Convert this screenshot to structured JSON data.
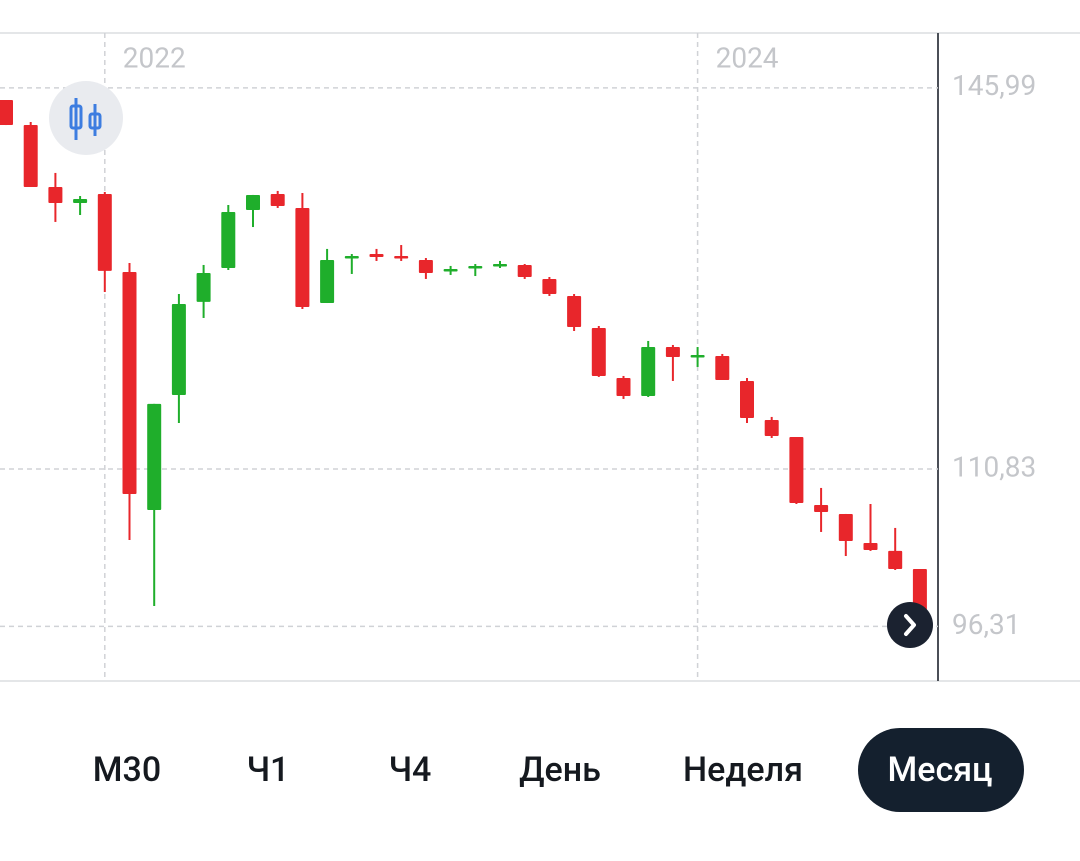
{
  "chart_data": {
    "type": "candlestick",
    "categories": [
      null,
      null,
      null,
      null,
      "2022",
      null,
      null,
      null,
      null,
      null,
      null,
      null,
      null,
      null,
      null,
      null,
      null,
      null,
      null,
      null,
      null,
      null,
      null,
      null,
      null,
      null,
      null,
      null,
      "2024",
      null,
      null,
      null,
      null,
      null,
      null,
      null,
      null,
      null
    ],
    "open": [
      144.87,
      142.56,
      136.84,
      135.37,
      136.2,
      129.0,
      107.05,
      117.66,
      126.24,
      129.37,
      134.72,
      136.2,
      134.91,
      126.14,
      130.29,
      130.66,
      130.48,
      130.11,
      129.1,
      129.37,
      129.65,
      129.65,
      128.36,
      126.79,
      123.84,
      119.22,
      117.56,
      122.08,
      121.16,
      121.25,
      118.95,
      115.35,
      113.78,
      107.51,
      106.68,
      104.0,
      103.27,
      101.6
    ],
    "high": [
      144.87,
      142.84,
      138.14,
      136.01,
      136.38,
      129.83,
      116.83,
      126.97,
      129.65,
      135.18,
      136.11,
      136.48,
      136.29,
      131.13,
      130.66,
      131.13,
      131.49,
      130.29,
      129.56,
      129.74,
      130.02,
      129.74,
      128.54,
      126.97,
      124.02,
      119.41,
      122.64,
      122.27,
      122.08,
      121.44,
      119.22,
      115.63,
      113.78,
      109.08,
      106.68,
      107.6,
      105.39,
      101.6
    ],
    "low": [
      142.56,
      136.84,
      133.62,
      134.26,
      127.16,
      104.28,
      98.19,
      115.07,
      124.76,
      129.19,
      133.15,
      134.91,
      125.59,
      126.14,
      128.82,
      130.02,
      130.02,
      128.36,
      128.73,
      128.63,
      129.37,
      128.36,
      126.79,
      123.56,
      119.32,
      117.29,
      117.47,
      118.95,
      120.24,
      119.04,
      115.07,
      113.69,
      107.6,
      105.02,
      102.8,
      103.27,
      101.51,
      97.36
    ],
    "close": [
      142.56,
      136.84,
      135.37,
      135.74,
      129.1,
      108.52,
      116.83,
      126.05,
      128.91,
      134.54,
      136.11,
      135.09,
      125.77,
      130.11,
      130.48,
      130.39,
      130.29,
      128.91,
      129.28,
      129.56,
      129.74,
      128.54,
      126.97,
      123.93,
      119.41,
      117.56,
      122.08,
      121.16,
      121.35,
      119.04,
      115.53,
      113.87,
      107.69,
      106.86,
      104.19,
      103.36,
      101.6,
      97.82
    ],
    "up_color": "#1fae2b",
    "down_color": "#e8262b",
    "ylim": [
      91.27,
      151.05
    ],
    "yticks": [
      {
        "value": 96.31,
        "label": "96,31"
      },
      {
        "value": 110.83,
        "label": "110,83"
      },
      {
        "value": 145.99,
        "label": "145,99"
      }
    ],
    "grid": true
  },
  "tabs": {
    "items": [
      "М30",
      "Ч1",
      "Ч4",
      "День",
      "Неделя",
      "Месяц"
    ],
    "selected": 5
  }
}
